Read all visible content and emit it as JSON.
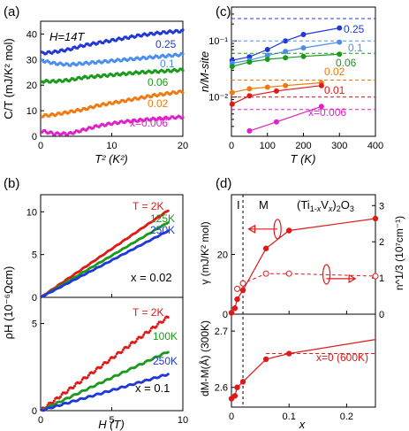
{
  "colors": {
    "c025": "#2038d8",
    "c01": "#4a8ff0",
    "c006": "#1a9a1a",
    "c002": "#f07a10",
    "c001": "#e01818",
    "c0006": "#e020c8",
    "red": "#e01818"
  },
  "chart_data": [
    {
      "panel": "(a)",
      "type": "scatter",
      "annotation": "H=14T",
      "xlabel": "T² (K²)",
      "ylabel": "C/T (mJ/K² mol)",
      "xlim": [
        0,
        20
      ],
      "ylim": [
        0,
        45
      ],
      "xticks": [
        0,
        10,
        20
      ],
      "yticks": [
        0,
        10,
        20,
        30,
        40
      ],
      "series": [
        {
          "name": "0.25",
          "color_key": "c025",
          "x": [
            0.3,
            2,
            4,
            6,
            8,
            10,
            12,
            14,
            16,
            18,
            20
          ],
          "y": [
            32.5,
            33,
            34,
            35.5,
            36.5,
            37.5,
            38.5,
            39.5,
            40.2,
            40.8,
            41.2
          ]
        },
        {
          "name": "0.1",
          "color_key": "c01",
          "x": [
            0.3,
            2,
            4,
            6,
            8,
            10,
            12,
            14,
            16,
            18,
            20
          ],
          "y": [
            29.5,
            28.5,
            28,
            28.5,
            29,
            29.5,
            30,
            30.5,
            31,
            31.5,
            32
          ]
        },
        {
          "name": "0.06",
          "color_key": "c006",
          "x": [
            0.3,
            2,
            4,
            6,
            8,
            10,
            12,
            14,
            16,
            18,
            20
          ],
          "y": [
            21.5,
            21.5,
            22,
            23,
            23.5,
            24,
            24.5,
            25,
            25.3,
            25.6,
            26
          ]
        },
        {
          "name": "0.02",
          "color_key": "c002",
          "x": [
            0.3,
            2,
            4,
            6,
            8,
            10,
            12,
            14,
            16,
            18,
            20
          ],
          "y": [
            8,
            8.5,
            9.5,
            10.5,
            12,
            13,
            14,
            15,
            16,
            16.8,
            17.5
          ]
        },
        {
          "name": "x=0.006",
          "color_key": "c0006",
          "x": [
            0.3,
            2,
            4,
            6,
            8,
            10,
            12,
            14,
            16,
            18,
            20
          ],
          "y": [
            2,
            1,
            1,
            2.5,
            4,
            5,
            5.8,
            6.3,
            6.8,
            7.2,
            7.6
          ]
        }
      ]
    },
    {
      "panel": "(b)",
      "type": "scatter",
      "xlabel": "H (T)",
      "ylabel": "ρH (10⁻⁶Ωcm)",
      "xlim": [
        0,
        10
      ],
      "xticks": [
        0,
        5,
        10
      ],
      "subplots": [
        {
          "label": "x = 0.02",
          "ylim": [
            0,
            12
          ],
          "yticks": [
            0,
            5,
            10
          ],
          "series": [
            {
              "name": "T = 2K",
              "color_key": "c001",
              "x": [
                0,
                9
              ],
              "y": [
                0,
                10.2
              ]
            },
            {
              "name": "125K",
              "color_key": "c006",
              "x": [
                0,
                9
              ],
              "y": [
                0,
                8.8
              ]
            },
            {
              "name": "250K",
              "color_key": "c025",
              "x": [
                0,
                9
              ],
              "y": [
                0,
                7.8
              ]
            }
          ]
        },
        {
          "label": "x = 0.1",
          "ylim": [
            0,
            6.5
          ],
          "yticks": [
            0,
            5
          ],
          "series": [
            {
              "name": "T = 2K",
              "color_key": "c001",
              "x": [
                0,
                9
              ],
              "y": [
                0,
                5.4
              ]
            },
            {
              "name": "100K",
              "color_key": "c006",
              "x": [
                0,
                9
              ],
              "y": [
                0,
                3.4
              ]
            },
            {
              "name": "250K",
              "color_key": "c025",
              "x": [
                0,
                9
              ],
              "y": [
                0,
                2.1
              ]
            }
          ]
        }
      ]
    },
    {
      "panel": "(c)",
      "type": "line",
      "yscale": "log",
      "xlabel": "T (K)",
      "ylabel": "n/M-site",
      "xlim": [
        0,
        400
      ],
      "ylim": [
        0.002,
        0.4
      ],
      "xticks": [
        0,
        100,
        200,
        300,
        400
      ],
      "yticks": [
        0.01,
        0.1
      ],
      "ytick_labels": [
        "10⁻²",
        "10⁻¹"
      ],
      "series": [
        {
          "name": "0.25",
          "color_key": "c025",
          "x": [
            2,
            50,
            100,
            150,
            200,
            300
          ],
          "y": [
            0.045,
            0.052,
            0.07,
            0.1,
            0.13,
            0.17
          ],
          "ref": 0.25
        },
        {
          "name": "0.1",
          "color_key": "c01",
          "x": [
            2,
            50,
            100,
            150,
            200,
            300
          ],
          "y": [
            0.04,
            0.045,
            0.055,
            0.065,
            0.075,
            0.095
          ],
          "ref": 0.1
        },
        {
          "name": "0.06",
          "color_key": "c006",
          "x": [
            2,
            50,
            100,
            150,
            200,
            300
          ],
          "y": [
            0.035,
            0.042,
            0.047,
            0.05,
            0.053,
            0.058
          ],
          "ref": 0.06
        },
        {
          "name": "0.02",
          "color_key": "c002",
          "x": [
            2,
            50,
            100,
            150,
            250
          ],
          "y": [
            0.012,
            0.014,
            0.015,
            0.016,
            0.018
          ],
          "ref": 0.02
        },
        {
          "name": "0.01",
          "color_key": "c001",
          "x": [
            2,
            50,
            125,
            250
          ],
          "y": [
            0.0075,
            0.0105,
            0.0128,
            0.016
          ],
          "ref": 0.01
        },
        {
          "name": "x=0.006",
          "color_key": "c0006",
          "x": [
            50,
            125,
            250
          ],
          "y": [
            0.0025,
            0.0036,
            0.0068
          ],
          "ref": 0.006
        }
      ]
    },
    {
      "panel": "(d)",
      "type": "line",
      "xlabel": "x",
      "xlim": [
        0,
        0.25
      ],
      "xticks": [
        0,
        0.1,
        0.2
      ],
      "phase_labels": [
        "I",
        "M"
      ],
      "boundary_x": 0.02,
      "formula": "(Ti1-xVx)2O3",
      "upper": {
        "ylabel": "γ (mJ/K² mol)",
        "ylim": [
          0,
          40
        ],
        "yticks": [
          0,
          20
        ],
        "ylabel_right": "n^1/3 (10⁷cm⁻¹)",
        "ylim_right": [
          0,
          3.3
        ],
        "yticks_right": [
          0,
          1,
          2,
          3
        ],
        "gamma": {
          "x": [
            0,
            0.006,
            0.01,
            0.02,
            0.06,
            0.1,
            0.25
          ],
          "y": [
            0.5,
            2,
            5,
            8,
            22,
            28,
            32
          ]
        },
        "n13": {
          "x": [
            0.01,
            0.02,
            0.06,
            0.1,
            0.25
          ],
          "y": [
            0.7,
            0.85,
            1.12,
            1.12,
            1.05
          ]
        }
      },
      "lower": {
        "ylabel": "dM-M(Å) (300K)",
        "ylim": [
          2.565,
          2.73
        ],
        "yticks": [
          2.6,
          2.7
        ],
        "ref_label": "x=0  (600K)",
        "ref_value": 2.66,
        "data": {
          "x": [
            0,
            0.006,
            0.01,
            0.02,
            0.06,
            0.1,
            0.25
          ],
          "y": [
            2.58,
            2.585,
            2.6,
            2.61,
            2.65,
            2.66,
            2.685
          ]
        }
      }
    }
  ]
}
